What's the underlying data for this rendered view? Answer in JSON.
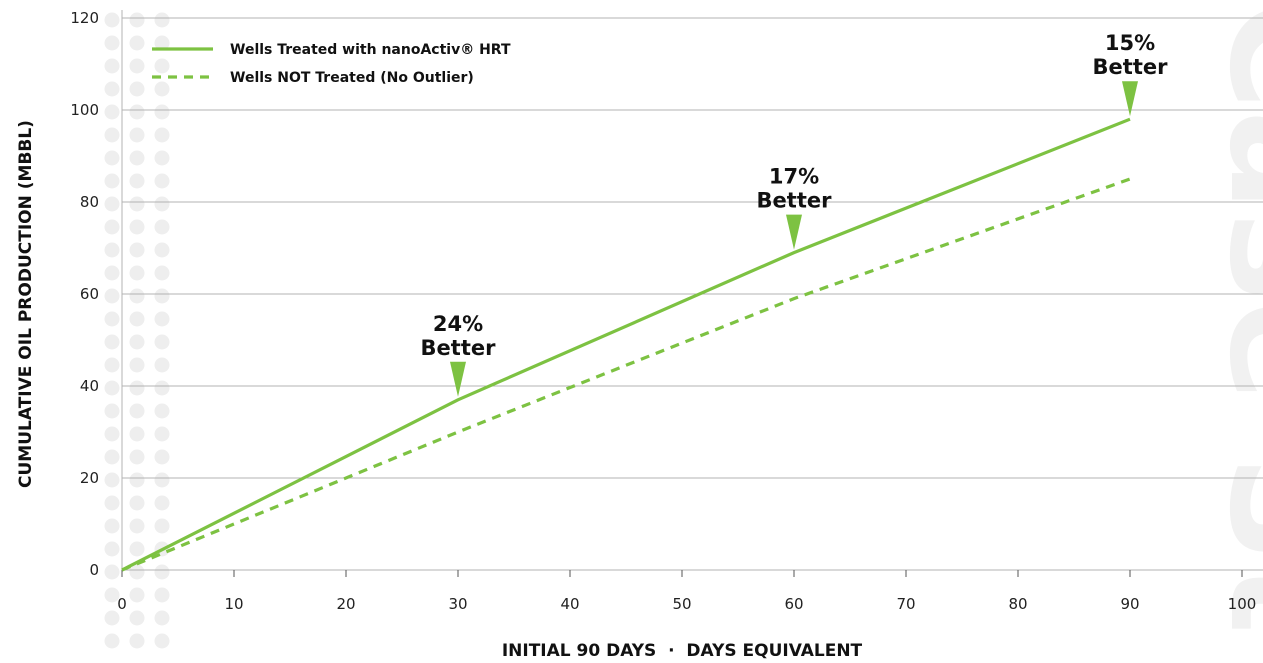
{
  "colors": {
    "series_solid": "#7dc242",
    "series_dashed": "#7dc242",
    "grid": "#b3b3b3",
    "dots": "#eeeeee",
    "watermark": "#f1f1f1"
  },
  "watermark": "Case St",
  "chart_data": {
    "type": "line",
    "xlabel": "INITIAL 90 DAYS  ·  DAYS EQUIVALENT",
    "ylabel": "CUMULATIVE OIL PRODUCTION (MBBL)",
    "xlim": [
      0,
      100
    ],
    "ylim": [
      0,
      120
    ],
    "x_ticks": [
      0,
      10,
      20,
      30,
      40,
      50,
      60,
      70,
      80,
      90,
      100
    ],
    "y_ticks": [
      0,
      20,
      40,
      60,
      80,
      100,
      120
    ],
    "grid": "horizontal",
    "legend_position": "top-left",
    "series": [
      {
        "name": "Wells Treated with nanoActiv® HRT",
        "style": "solid",
        "x": [
          0,
          30,
          60,
          90
        ],
        "y": [
          0,
          37,
          69,
          98
        ]
      },
      {
        "name": "Wells NOT Treated (No Outlier)",
        "style": "dashed",
        "x": [
          0,
          30,
          60,
          90
        ],
        "y": [
          0,
          30,
          59,
          85
        ]
      }
    ],
    "annotations": [
      {
        "x": 30,
        "y": 37,
        "line1": "24%",
        "line2": "Better"
      },
      {
        "x": 60,
        "y": 69,
        "line1": "17%",
        "line2": "Better"
      },
      {
        "x": 90,
        "y": 98,
        "line1": "15%",
        "line2": "Better"
      }
    ]
  }
}
